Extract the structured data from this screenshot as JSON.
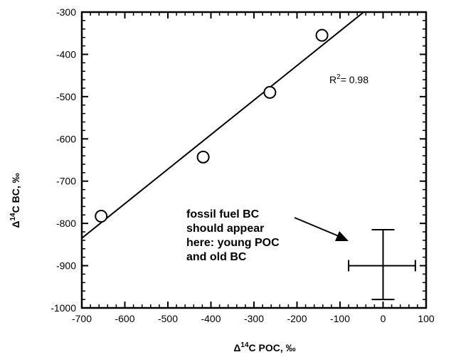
{
  "chart_data": {
    "type": "scatter",
    "xlabel_prefix": "Δ",
    "xlabel_sup": "14",
    "xlabel_suffix": "C POC, ‰",
    "ylabel_prefix": "Δ",
    "ylabel_sup": "14",
    "ylabel_suffix": "C BC, ‰",
    "xlim": [
      -700,
      100
    ],
    "ylim": [
      -1000,
      -300
    ],
    "x_ticks": [
      -700,
      -600,
      -500,
      -400,
      -300,
      -200,
      -100,
      0,
      100
    ],
    "y_ticks": [
      -300,
      -400,
      -500,
      -600,
      -700,
      -800,
      -900,
      -1000
    ],
    "points": [
      {
        "x": -655,
        "y": -783
      },
      {
        "x": -418,
        "y": -643
      },
      {
        "x": -263,
        "y": -490
      },
      {
        "x": -142,
        "y": -355
      }
    ],
    "fit_line": {
      "x1": -700,
      "y1": -835,
      "x2": -45,
      "y2": -300
    },
    "r2_label": "R",
    "r2_sup": "2",
    "r2_value": "= 0.98",
    "annotation_lines": [
      "fossil fuel BC",
      "should appear",
      "here: young POC",
      "and old BC"
    ],
    "error_cross": {
      "x": 0,
      "y": -900,
      "x_low": -80,
      "x_high": 75,
      "y_low": -980,
      "y_high": -815
    },
    "grid": false
  }
}
